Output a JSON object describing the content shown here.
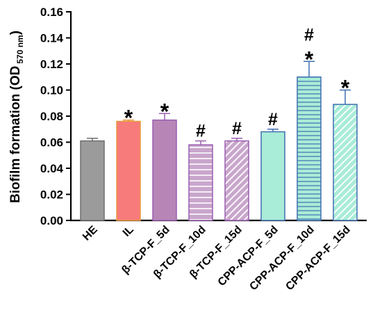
{
  "chart_data": {
    "type": "bar",
    "ylabel_main": "Biofilm formation (OD",
    "ylabel_sub": "570 nm",
    "ylabel_close": ")",
    "ylim": [
      0,
      0.16
    ],
    "yticks": [
      "0.00",
      "0.02",
      "0.04",
      "0.06",
      "0.08",
      "0.10",
      "0.12",
      "0.14",
      "0.16"
    ],
    "categories": [
      "HE",
      "IL",
      "β-TCP-F_5d",
      "β-TCP-F_10d",
      "β-TCP-F_15d",
      "CPP-ACP-F_5d",
      "CPP-ACP-F_10d",
      "CPP-ACP-F_15d"
    ],
    "values": [
      0.061,
      0.076,
      0.077,
      0.058,
      0.061,
      0.068,
      0.11,
      0.089
    ],
    "errors": [
      0.002,
      0.001,
      0.005,
      0.003,
      0.002,
      0.002,
      0.012,
      0.011
    ],
    "annotations": [
      [],
      [
        "*"
      ],
      [
        "*"
      ],
      [
        "#"
      ],
      [
        "#"
      ],
      [
        "#"
      ],
      [
        "#",
        "*"
      ],
      [
        "*"
      ]
    ],
    "styles": [
      {
        "fill": "#9b9b9b",
        "stroke": "#6e6e6e",
        "pattern": "solid"
      },
      {
        "fill": "#f77b7b",
        "stroke": "#e89a3c",
        "pattern": "solid"
      },
      {
        "fill": "#b786b7",
        "stroke": "#9a5fb0",
        "pattern": "solid"
      },
      {
        "fill": "#c9a6cc",
        "stroke": "#9a5fb0",
        "pattern": "hlines"
      },
      {
        "fill": "#c9a6cc",
        "stroke": "#9a5fb0",
        "pattern": "diag"
      },
      {
        "fill": "#a9ecd7",
        "stroke": "#3f6fb0",
        "pattern": "solid"
      },
      {
        "fill": "#a9ecd7",
        "stroke": "#3f6fb0",
        "pattern": "hlines"
      },
      {
        "fill": "#a9ecd7",
        "stroke": "#3f6fb0",
        "pattern": "diag"
      }
    ],
    "grid": false,
    "legend": "none"
  }
}
